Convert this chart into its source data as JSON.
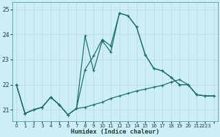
{
  "xlabel": "Humidex (Indice chaleur)",
  "bg_color": "#ceeef5",
  "line_color": "#1a6e6a",
  "grid_color": "#b8dde5",
  "xlim_min": -0.5,
  "xlim_max": 23.5,
  "ylim_min": 20.55,
  "ylim_max": 25.3,
  "yticks": [
    21,
    22,
    23,
    24,
    25
  ],
  "xticks": [
    0,
    1,
    2,
    3,
    4,
    5,
    6,
    7,
    8,
    9,
    10,
    11,
    12,
    13,
    14,
    15,
    16,
    17,
    18,
    19,
    20,
    21,
    22,
    23
  ],
  "xtick_labels": [
    "0",
    "1",
    "2",
    "3",
    "4",
    "5",
    "6",
    "7",
    "8",
    "9",
    "10",
    "11",
    "12",
    "13",
    "14",
    "15",
    "16",
    "17",
    "18",
    "19",
    "20",
    "21",
    "2223",
    ""
  ],
  "line1_x": [
    0,
    1,
    2,
    3,
    4,
    5,
    6,
    7,
    8,
    9,
    10,
    11,
    12,
    13,
    14,
    15,
    16,
    17,
    18,
    19,
    20,
    21,
    22,
    23
  ],
  "line1_y": [
    22.0,
    20.85,
    21.0,
    21.1,
    21.5,
    21.2,
    20.8,
    21.05,
    21.1,
    21.2,
    21.3,
    21.45,
    21.55,
    21.65,
    21.75,
    21.82,
    21.9,
    21.97,
    22.1,
    22.2,
    22.0,
    21.6,
    21.55,
    21.55
  ],
  "line2_x": [
    0,
    1,
    2,
    3,
    4,
    5,
    6,
    7,
    8,
    9,
    10,
    11,
    12,
    13,
    14,
    15,
    16,
    17,
    18,
    19,
    20,
    21,
    22,
    23
  ],
  "line2_y": [
    22.0,
    20.85,
    21.0,
    21.1,
    21.5,
    21.2,
    20.8,
    21.05,
    22.6,
    23.15,
    23.8,
    23.55,
    24.85,
    24.75,
    24.3,
    23.2,
    22.65,
    22.55,
    22.3,
    22.0,
    22.0,
    21.6,
    21.55,
    21.55
  ],
  "line3_x": [
    0,
    1,
    2,
    3,
    4,
    5,
    6,
    7,
    8,
    9,
    10,
    11,
    12,
    13,
    14,
    15,
    16,
    17,
    18,
    19,
    20,
    21,
    22,
    23
  ],
  "line3_y": [
    22.0,
    20.85,
    21.0,
    21.1,
    21.5,
    21.2,
    20.8,
    21.05,
    23.95,
    22.55,
    23.75,
    23.3,
    24.85,
    24.75,
    24.3,
    23.2,
    22.65,
    22.55,
    22.3,
    22.0,
    22.0,
    21.6,
    21.55,
    21.55
  ],
  "marker_size": 3.5,
  "linewidth": 0.9
}
